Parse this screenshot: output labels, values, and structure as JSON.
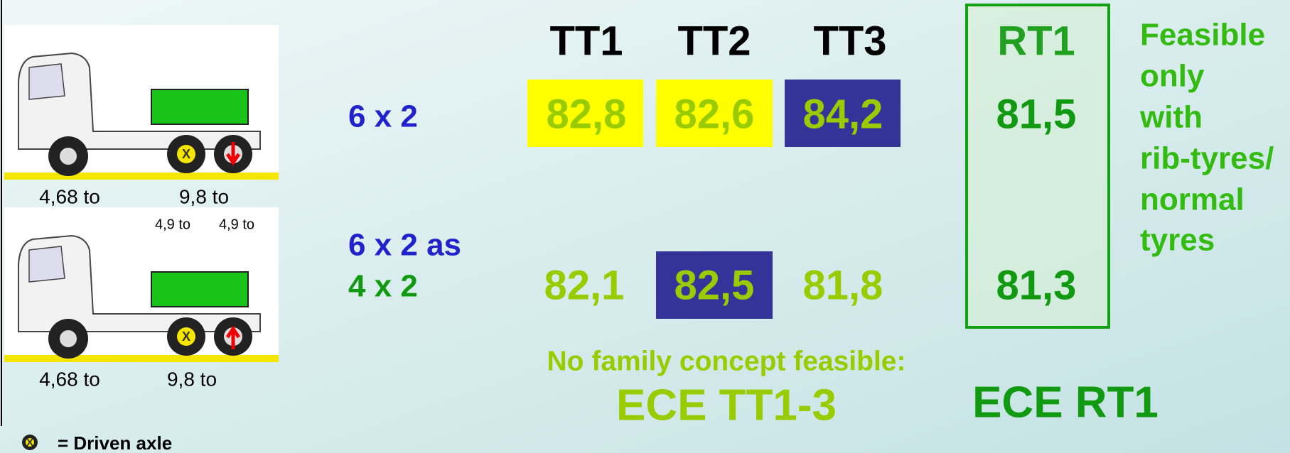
{
  "table": {
    "headers": [
      "TT1",
      "TT2",
      "TT3",
      "RT1"
    ],
    "rows": [
      {
        "label": [
          "6 x 2"
        ],
        "values": [
          "82,8",
          "82,6",
          "84,2",
          "81,5"
        ]
      },
      {
        "label": [
          "6 x 2 as",
          "4 x 2"
        ],
        "values": [
          "82,1",
          "82,5",
          "81,8",
          "81,3"
        ]
      }
    ]
  },
  "note": [
    "Feasible",
    "only",
    "with",
    "rib-tyres/",
    "normal",
    "tyres"
  ],
  "trucks": [
    {
      "front": "4,68 to",
      "rear": "9,8 to",
      "axles": [
        "4,9 to",
        "4,9 to"
      ]
    },
    {
      "front": "4,68 to",
      "rear": "9,8 to"
    }
  ],
  "legend": {
    "icon": "X",
    "text": "= Driven axle"
  },
  "conclusion": {
    "subtitle": "No family concept feasible:",
    "left": "ECE TT1-3",
    "right": "ECE RT1"
  }
}
